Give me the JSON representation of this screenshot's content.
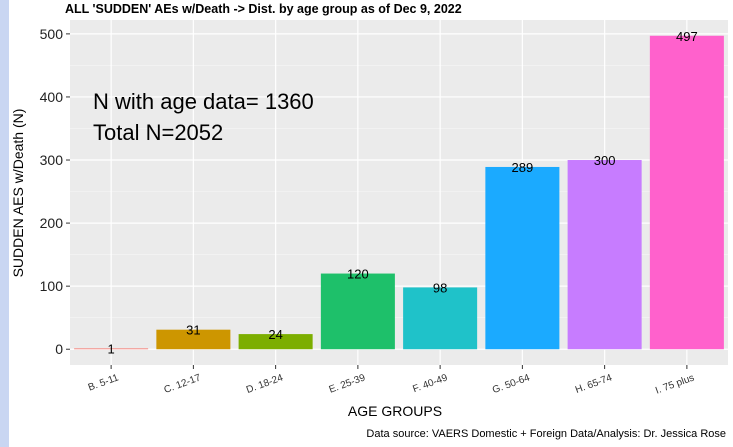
{
  "chart_data": {
    "type": "bar",
    "title": "ALL 'SUDDEN' AEs w/Death -> Dist. by age group as of Dec 9, 2022",
    "xlabel": "AGE GROUPS",
    "ylabel": "SUDDEN AES w/Death (N)",
    "categories": [
      "B. 5-11",
      "C. 12-17",
      "D. 18-24",
      "E. 25-39",
      "F. 40-49",
      "G. 50-64",
      "H. 65-74",
      "I. 75 plus"
    ],
    "values": [
      1,
      31,
      24,
      120,
      98,
      289,
      300,
      497
    ],
    "data_labels": [
      "1",
      "31",
      "24",
      "120",
      "98",
      "289",
      "300",
      "497"
    ],
    "colors": [
      "#F8766D",
      "#CD9600",
      "#7CAE00",
      "#1EC06A",
      "#1FC2C9",
      "#1BAAFF",
      "#C77CFF",
      "#FF61CC"
    ],
    "yticks": [
      0,
      100,
      200,
      300,
      400,
      500
    ],
    "ylim": [
      -25,
      522
    ],
    "grid": true,
    "legend": "none",
    "annotations": [
      "N with age data= 1360",
      "Total N=2052"
    ],
    "caption": "Data source: VAERS Domestic + Foreign Data/Analysis: Dr. Jessica Rose"
  }
}
